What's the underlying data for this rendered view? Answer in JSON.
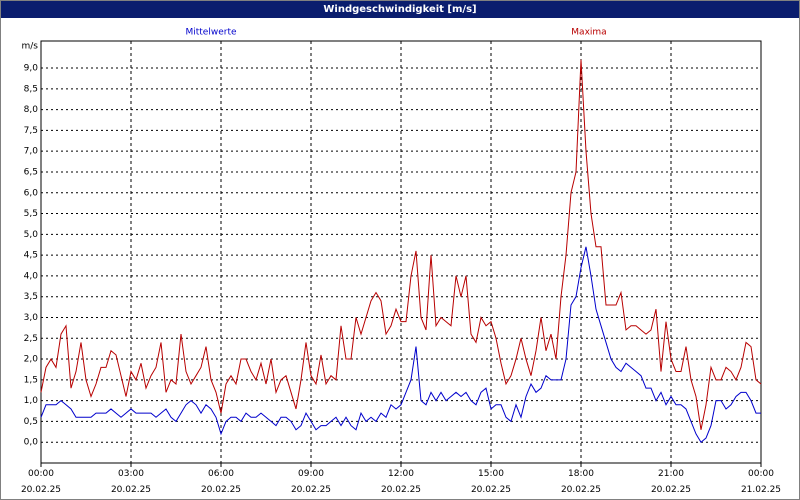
{
  "chart_data": {
    "type": "line",
    "title": "Windgeschwindigkeit [m/s]",
    "y_label": "m/s",
    "x": [
      0,
      10,
      20,
      30,
      40,
      50,
      60,
      70,
      80,
      90,
      100,
      110,
      120,
      130,
      140,
      150,
      160,
      170,
      180,
      190,
      200,
      210,
      220,
      230,
      240,
      250,
      260,
      270,
      280,
      290,
      300,
      310,
      320,
      330,
      340,
      350,
      360,
      370,
      380,
      390,
      400,
      410,
      420,
      430,
      440,
      450,
      460,
      470,
      480,
      490,
      500,
      510,
      520,
      530,
      540,
      550,
      560,
      570,
      580,
      590,
      600,
      610,
      620,
      630,
      640,
      650,
      660,
      670,
      680,
      690,
      700,
      710,
      720,
      730,
      740,
      750,
      760,
      770,
      780,
      790,
      800,
      810,
      820,
      830,
      840,
      850,
      860,
      870,
      880,
      890,
      900,
      910,
      920,
      930,
      940,
      950,
      960,
      970,
      980,
      990,
      1000,
      1010,
      1020,
      1030,
      1040,
      1050,
      1060,
      1070,
      1080,
      1090,
      1100,
      1110,
      1120,
      1130,
      1140,
      1150,
      1160,
      1170,
      1180,
      1190,
      1200,
      1210,
      1220,
      1230,
      1240,
      1250,
      1260,
      1270,
      1280,
      1290,
      1300,
      1310,
      1320,
      1330,
      1340,
      1350,
      1360,
      1370,
      1380,
      1390,
      1400,
      1410,
      1420,
      1430,
      1440
    ],
    "series": [
      {
        "name": "Mittelwerte",
        "color": "#0000cc",
        "values": [
          0.6,
          0.9,
          0.9,
          0.9,
          1.0,
          0.9,
          0.8,
          0.6,
          0.6,
          0.6,
          0.6,
          0.7,
          0.7,
          0.7,
          0.8,
          0.7,
          0.6,
          0.7,
          0.8,
          0.7,
          0.7,
          0.7,
          0.7,
          0.6,
          0.7,
          0.8,
          0.6,
          0.5,
          0.7,
          0.9,
          1.0,
          0.9,
          0.7,
          0.9,
          0.8,
          0.6,
          0.2,
          0.5,
          0.6,
          0.6,
          0.5,
          0.7,
          0.6,
          0.6,
          0.7,
          0.6,
          0.5,
          0.4,
          0.6,
          0.6,
          0.5,
          0.3,
          0.4,
          0.7,
          0.5,
          0.3,
          0.4,
          0.4,
          0.5,
          0.6,
          0.4,
          0.6,
          0.4,
          0.3,
          0.7,
          0.5,
          0.6,
          0.5,
          0.7,
          0.6,
          0.9,
          0.8,
          0.9,
          1.2,
          1.5,
          2.3,
          1.0,
          0.9,
          1.2,
          1.0,
          1.2,
          1.0,
          1.1,
          1.2,
          1.1,
          1.2,
          1.0,
          0.9,
          1.2,
          1.3,
          0.8,
          0.9,
          0.9,
          0.6,
          0.5,
          0.9,
          0.6,
          1.1,
          1.4,
          1.2,
          1.3,
          1.6,
          1.5,
          1.5,
          1.5,
          2.0,
          3.3,
          3.5,
          4.2,
          4.7,
          4.0,
          3.2,
          2.8,
          2.4,
          2.0,
          1.8,
          1.7,
          1.9,
          1.8,
          1.7,
          1.6,
          1.3,
          1.3,
          1.0,
          1.2,
          0.9,
          1.1,
          0.9,
          0.9,
          0.8,
          0.5,
          0.2,
          0.0,
          0.1,
          0.4,
          1.0,
          1.0,
          0.8,
          0.9,
          1.1,
          1.2,
          1.2,
          1.0,
          0.7,
          0.7
        ]
      },
      {
        "name": "Maxima",
        "color": "#b80000",
        "values": [
          1.2,
          1.8,
          2.0,
          1.8,
          2.6,
          2.8,
          1.3,
          1.7,
          2.4,
          1.5,
          1.1,
          1.4,
          1.8,
          1.8,
          2.2,
          2.1,
          1.6,
          1.1,
          1.7,
          1.5,
          1.9,
          1.3,
          1.6,
          1.8,
          2.4,
          1.2,
          1.5,
          1.4,
          2.6,
          1.7,
          1.4,
          1.6,
          1.8,
          2.3,
          1.5,
          1.2,
          0.7,
          1.4,
          1.6,
          1.4,
          2.0,
          2.0,
          1.7,
          1.5,
          1.9,
          1.4,
          2.0,
          1.2,
          1.5,
          1.6,
          1.2,
          0.8,
          1.5,
          2.4,
          1.6,
          1.4,
          2.1,
          1.4,
          1.6,
          1.5,
          2.8,
          2.0,
          2.0,
          3.0,
          2.6,
          3.0,
          3.4,
          3.6,
          3.4,
          2.6,
          2.8,
          3.2,
          2.9,
          2.9,
          4.0,
          4.6,
          3.0,
          2.7,
          4.5,
          2.8,
          3.0,
          2.9,
          2.8,
          4.0,
          3.5,
          4.0,
          2.6,
          2.4,
          3.0,
          2.8,
          2.9,
          2.5,
          1.9,
          1.4,
          1.6,
          2.0,
          2.5,
          2.0,
          1.6,
          2.2,
          3.0,
          2.2,
          2.6,
          2.0,
          3.5,
          4.5,
          6.0,
          6.5,
          9.2,
          7.0,
          5.5,
          4.7,
          4.7,
          3.3,
          3.3,
          3.3,
          3.6,
          2.7,
          2.8,
          2.8,
          2.7,
          2.6,
          2.7,
          3.2,
          1.7,
          2.9,
          2.0,
          1.7,
          1.7,
          2.3,
          1.5,
          1.1,
          0.3,
          0.9,
          1.8,
          1.5,
          1.5,
          1.8,
          1.7,
          1.5,
          1.8,
          2.4,
          2.3,
          1.5,
          1.4
        ]
      }
    ],
    "xlim": [
      0,
      1440
    ],
    "xticks": [
      {
        "value": 0,
        "label": "00:00\n20.02.25"
      },
      {
        "value": 180,
        "label": "03:00\n20.02.25"
      },
      {
        "value": 360,
        "label": "06:00\n20.02.25"
      },
      {
        "value": 540,
        "label": "09:00\n20.02.25"
      },
      {
        "value": 720,
        "label": "12:00\n20.02.25"
      },
      {
        "value": 900,
        "label": "15:00\n20.02.25"
      },
      {
        "value": 1080,
        "label": "18:00\n20.02.25"
      },
      {
        "value": 1260,
        "label": "21:00\n20.02.25"
      },
      {
        "value": 1440,
        "label": "00:00\n21.02.25"
      }
    ],
    "ylim": [
      -0.5,
      9.65
    ],
    "yticks": [
      {
        "value": 0,
        "label": "0,0"
      },
      {
        "value": 0.5,
        "label": "0,5"
      },
      {
        "value": 1,
        "label": "1,0"
      },
      {
        "value": 1.5,
        "label": "1,5"
      },
      {
        "value": 2,
        "label": "2,0"
      },
      {
        "value": 2.5,
        "label": "2,5"
      },
      {
        "value": 3,
        "label": "3,0"
      },
      {
        "value": 3.5,
        "label": "3,5"
      },
      {
        "value": 4,
        "label": "4,0"
      },
      {
        "value": 4.5,
        "label": "4,5"
      },
      {
        "value": 5,
        "label": "5,0"
      },
      {
        "value": 5.5,
        "label": "5,5"
      },
      {
        "value": 6,
        "label": "6,0"
      },
      {
        "value": 6.5,
        "label": "6,5"
      },
      {
        "value": 7,
        "label": "7,0"
      },
      {
        "value": 7.5,
        "label": "7,5"
      },
      {
        "value": 8,
        "label": "8,0"
      },
      {
        "value": 8.5,
        "label": "8,5"
      },
      {
        "value": 9,
        "label": "9,0"
      }
    ],
    "grid": true
  }
}
